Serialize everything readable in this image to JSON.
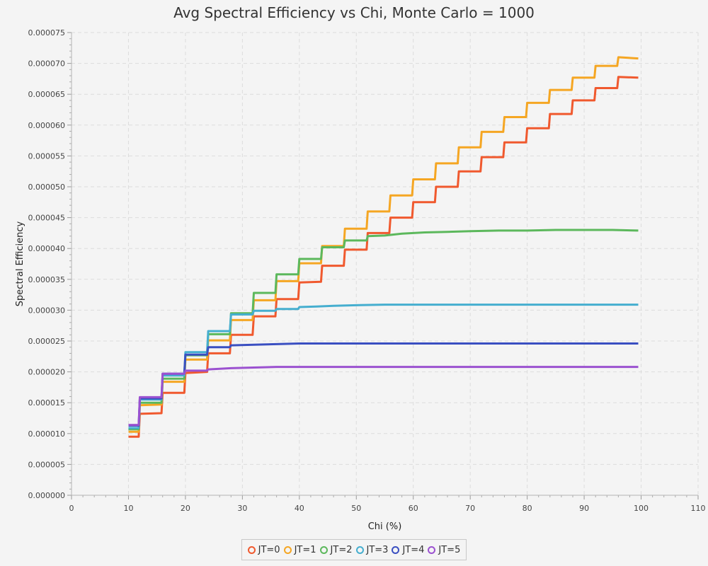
{
  "chart_data": {
    "type": "line",
    "title": "Avg Spectral Efficiency vs Chi, Monte Carlo = 1000",
    "xlabel": "Chi (%)",
    "ylabel": "Spectral Efficiency",
    "xlim": [
      0,
      110
    ],
    "ylim": [
      0,
      7.5e-05
    ],
    "xticks": [
      "0",
      "10",
      "20",
      "30",
      "40",
      "50",
      "60",
      "70",
      "80",
      "90",
      "100",
      "110"
    ],
    "yticks": [
      "0.000000",
      "0.000005",
      "0.000010",
      "0.000015",
      "0.000020",
      "0.000025",
      "0.000030",
      "0.000035",
      "0.000040",
      "0.000045",
      "0.000050",
      "0.000055",
      "0.000060",
      "0.000065",
      "0.000070",
      "0.000075"
    ],
    "grid": true,
    "legend_position": "bottom-center",
    "series": [
      {
        "name": "JT=0",
        "color": "#f0592e",
        "x": [
          10,
          11.8,
          12,
          15.8,
          16,
          19.8,
          20,
          23.8,
          24,
          27.8,
          28,
          31.8,
          32,
          35.8,
          36,
          39.8,
          40,
          43.8,
          44,
          47.8,
          48,
          51.8,
          52,
          55.8,
          56,
          59.8,
          60,
          63.8,
          64,
          67.8,
          68,
          71.8,
          72,
          75.8,
          76,
          79.8,
          80,
          83.8,
          84,
          87.8,
          88,
          91.8,
          92,
          95.8,
          96,
          99.5
        ],
        "y": [
          9.5e-06,
          9.5e-06,
          1.32e-05,
          1.33e-05,
          1.66e-05,
          1.66e-05,
          1.98e-05,
          2e-05,
          2.3e-05,
          2.3e-05,
          2.6e-05,
          2.6e-05,
          2.9e-05,
          2.9e-05,
          3.18e-05,
          3.18e-05,
          3.45e-05,
          3.46e-05,
          3.72e-05,
          3.72e-05,
          3.98e-05,
          3.98e-05,
          4.25e-05,
          4.25e-05,
          4.5e-05,
          4.5e-05,
          4.75e-05,
          4.75e-05,
          5e-05,
          5e-05,
          5.25e-05,
          5.25e-05,
          5.48e-05,
          5.48e-05,
          5.72e-05,
          5.72e-05,
          5.95e-05,
          5.95e-05,
          6.18e-05,
          6.18e-05,
          6.4e-05,
          6.4e-05,
          6.6e-05,
          6.6e-05,
          6.78e-05,
          6.77e-05
        ]
      },
      {
        "name": "JT=1",
        "color": "#f5a623",
        "x": [
          10,
          11.8,
          12,
          15.8,
          16,
          19.8,
          20,
          23.8,
          24,
          27.8,
          28,
          31.8,
          32,
          35.8,
          36,
          39.8,
          40,
          43.8,
          44,
          47.8,
          48,
          51.8,
          52,
          55.8,
          56,
          59.8,
          60,
          63.8,
          64,
          67.8,
          68,
          71.8,
          72,
          75.8,
          76,
          79.8,
          80,
          83.8,
          84,
          87.8,
          88,
          91.8,
          92,
          95.8,
          96,
          99.5
        ],
        "y": [
          1.03e-05,
          1.03e-05,
          1.46e-05,
          1.47e-05,
          1.84e-05,
          1.84e-05,
          2.2e-05,
          2.2e-05,
          2.51e-05,
          2.51e-05,
          2.84e-05,
          2.84e-05,
          3.16e-05,
          3.16e-05,
          3.47e-05,
          3.47e-05,
          3.76e-05,
          3.76e-05,
          4.04e-05,
          4.04e-05,
          4.32e-05,
          4.32e-05,
          4.6e-05,
          4.6e-05,
          4.86e-05,
          4.86e-05,
          5.12e-05,
          5.12e-05,
          5.38e-05,
          5.38e-05,
          5.64e-05,
          5.64e-05,
          5.89e-05,
          5.89e-05,
          6.13e-05,
          6.13e-05,
          6.36e-05,
          6.36e-05,
          6.57e-05,
          6.57e-05,
          6.77e-05,
          6.77e-05,
          6.96e-05,
          6.96e-05,
          7.1e-05,
          7.08e-05
        ]
      },
      {
        "name": "JT=2",
        "color": "#5cb85c",
        "x": [
          10,
          11.8,
          12,
          15.8,
          16,
          19.8,
          20,
          23.8,
          24,
          27.8,
          28,
          31.8,
          32,
          35.8,
          36,
          39.8,
          40,
          43.8,
          44,
          47.8,
          48,
          51.8,
          52,
          55,
          58,
          62,
          66,
          70,
          75,
          80,
          85,
          90,
          95,
          99.5
        ],
        "y": [
          1.07e-05,
          1.07e-05,
          1.5e-05,
          1.5e-05,
          1.89e-05,
          1.89e-05,
          2.27e-05,
          2.27e-05,
          2.61e-05,
          2.61e-05,
          2.95e-05,
          2.95e-05,
          3.28e-05,
          3.28e-05,
          3.58e-05,
          3.58e-05,
          3.83e-05,
          3.83e-05,
          4.02e-05,
          4.02e-05,
          4.13e-05,
          4.13e-05,
          4.2e-05,
          4.21e-05,
          4.24e-05,
          4.26e-05,
          4.27e-05,
          4.28e-05,
          4.29e-05,
          4.29e-05,
          4.3e-05,
          4.3e-05,
          4.3e-05,
          4.29e-05
        ]
      },
      {
        "name": "JT=3",
        "color": "#45aecf",
        "x": [
          10,
          11.8,
          12,
          15.8,
          16,
          19.8,
          20,
          23.8,
          24,
          27.8,
          28,
          31.8,
          32,
          35.8,
          36,
          39.8,
          40,
          43,
          46,
          50,
          55,
          60,
          70,
          80,
          90,
          99.5
        ],
        "y": [
          1.09e-05,
          1.09e-05,
          1.55e-05,
          1.55e-05,
          1.94e-05,
          1.94e-05,
          2.32e-05,
          2.32e-05,
          2.66e-05,
          2.66e-05,
          2.93e-05,
          2.93e-05,
          2.99e-05,
          2.99e-05,
          3.02e-05,
          3.02e-05,
          3.05e-05,
          3.06e-05,
          3.07e-05,
          3.08e-05,
          3.09e-05,
          3.09e-05,
          3.09e-05,
          3.09e-05,
          3.09e-05,
          3.09e-05
        ]
      },
      {
        "name": "JT=4",
        "color": "#3a4fc1",
        "x": [
          10,
          11.8,
          12,
          15.8,
          16,
          19.8,
          20,
          23.8,
          24,
          27.8,
          28,
          32,
          36,
          40,
          50,
          60,
          70,
          80,
          90,
          99.5
        ],
        "y": [
          1.13e-05,
          1.13e-05,
          1.57e-05,
          1.57e-05,
          1.97e-05,
          1.97e-05,
          2.28e-05,
          2.28e-05,
          2.4e-05,
          2.4e-05,
          2.43e-05,
          2.44e-05,
          2.45e-05,
          2.46e-05,
          2.46e-05,
          2.46e-05,
          2.46e-05,
          2.46e-05,
          2.46e-05,
          2.46e-05
        ]
      },
      {
        "name": "JT=5",
        "color": "#9b51d0",
        "x": [
          10,
          11.8,
          12,
          15.8,
          16,
          19.8,
          20,
          23.8,
          24,
          28,
          32,
          36,
          40,
          50,
          60,
          70,
          80,
          90,
          99.5
        ],
        "y": [
          1.14e-05,
          1.14e-05,
          1.59e-05,
          1.59e-05,
          1.97e-05,
          1.97e-05,
          2.02e-05,
          2.02e-05,
          2.04e-05,
          2.06e-05,
          2.07e-05,
          2.08e-05,
          2.08e-05,
          2.08e-05,
          2.08e-05,
          2.08e-05,
          2.08e-05,
          2.08e-05,
          2.08e-05
        ]
      }
    ]
  }
}
